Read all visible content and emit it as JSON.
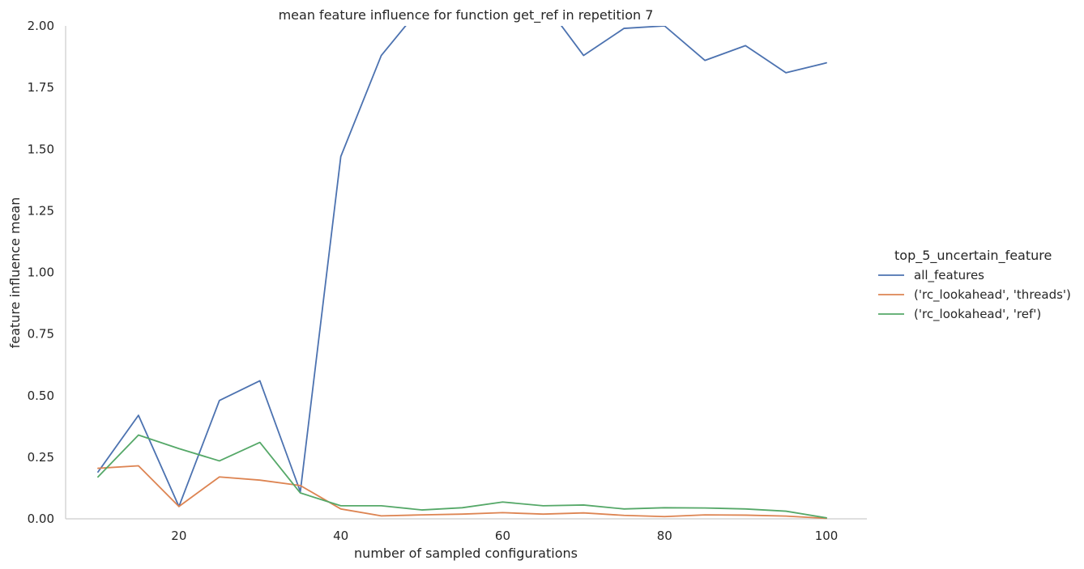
{
  "chart_data": {
    "type": "line",
    "title": "mean feature influence for function get_ref in repetition 7",
    "xlabel": "number of sampled configurations",
    "ylabel": "feature influence mean",
    "xlim": [
      6,
      105
    ],
    "ylim": [
      0,
      2.0
    ],
    "xticks": [
      20,
      40,
      60,
      80,
      100
    ],
    "yticks": [
      0.0,
      0.25,
      0.5,
      0.75,
      1.0,
      1.25,
      1.5,
      1.75,
      2.0
    ],
    "ytick_labels": [
      "0.00",
      "0.25",
      "0.50",
      "0.75",
      "1.00",
      "1.25",
      "1.50",
      "1.75",
      "2.00"
    ],
    "legend_title": "top_5_uncertain_feature",
    "legend_position": "right",
    "grid": false,
    "x": [
      10,
      15,
      20,
      25,
      30,
      35,
      40,
      45,
      50,
      55,
      60,
      65,
      70,
      75,
      80,
      85,
      90,
      95,
      100
    ],
    "series": [
      {
        "name": "all_features",
        "color": "#4c72b0",
        "values": [
          0.19,
          0.42,
          0.05,
          0.48,
          0.56,
          0.11,
          1.47,
          1.88,
          2.08,
          2.15,
          2.12,
          2.1,
          1.88,
          1.99,
          2.0,
          1.86,
          1.92,
          1.81,
          1.85
        ]
      },
      {
        "name": "('rc_lookahead', 'threads')",
        "color": "#dd8452",
        "values": [
          0.205,
          0.215,
          0.05,
          0.17,
          0.157,
          0.135,
          0.04,
          0.012,
          0.016,
          0.019,
          0.025,
          0.019,
          0.024,
          0.014,
          0.009,
          0.016,
          0.015,
          0.011,
          0.002
        ]
      },
      {
        "name": "('rc_lookahead', 'ref')",
        "color": "#55a868",
        "values": [
          0.17,
          0.34,
          0.285,
          0.235,
          0.31,
          0.105,
          0.053,
          0.053,
          0.036,
          0.045,
          0.068,
          0.053,
          0.056,
          0.04,
          0.045,
          0.044,
          0.04,
          0.031,
          0.004
        ]
      }
    ]
  }
}
